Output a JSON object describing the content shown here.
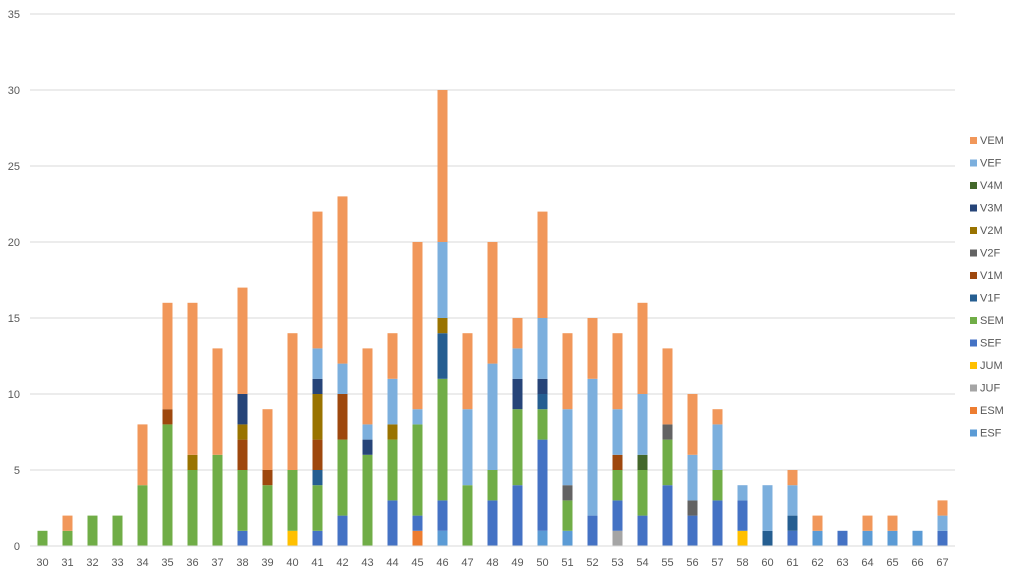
{
  "chart_data": {
    "type": "bar",
    "stacked": true,
    "title": "",
    "xlabel": "",
    "ylabel": "",
    "ylim": [
      0,
      35
    ],
    "yticks": [
      0,
      5,
      10,
      15,
      20,
      25,
      30,
      35
    ],
    "grid": true,
    "legend_position": "right",
    "categories": [
      "30",
      "31",
      "32",
      "33",
      "34",
      "35",
      "36",
      "37",
      "38",
      "39",
      "40",
      "41",
      "42",
      "43",
      "44",
      "45",
      "46",
      "47",
      "48",
      "49",
      "50",
      "51",
      "52",
      "53",
      "54",
      "55",
      "56",
      "57",
      "58",
      "60",
      "61",
      "62",
      "63",
      "64",
      "65",
      "66",
      "67"
    ],
    "series": [
      {
        "name": "ESF",
        "color": "#5b9bd5",
        "values": [
          0,
          0,
          0,
          0,
          0,
          0,
          0,
          0,
          0,
          0,
          0,
          0,
          0,
          0,
          0,
          0,
          1,
          0,
          0,
          0,
          1,
          1,
          0,
          0,
          0,
          0,
          0,
          0,
          0,
          0,
          0,
          1,
          0,
          1,
          1,
          1,
          0
        ]
      },
      {
        "name": "ESM",
        "color": "#ed7d31",
        "values": [
          0,
          0,
          0,
          0,
          0,
          0,
          0,
          0,
          0,
          0,
          0,
          0,
          0,
          0,
          0,
          1,
          0,
          0,
          0,
          0,
          0,
          0,
          0,
          0,
          0,
          0,
          0,
          0,
          0,
          0,
          0,
          0,
          0,
          0,
          0,
          0,
          0
        ]
      },
      {
        "name": "JUF",
        "color": "#a5a5a5",
        "values": [
          0,
          0,
          0,
          0,
          0,
          0,
          0,
          0,
          0,
          0,
          0,
          0,
          0,
          0,
          0,
          0,
          0,
          0,
          0,
          0,
          0,
          0,
          0,
          1,
          0,
          0,
          0,
          0,
          0,
          0,
          0,
          0,
          0,
          0,
          0,
          0,
          0
        ]
      },
      {
        "name": "JUM",
        "color": "#ffc000",
        "values": [
          0,
          0,
          0,
          0,
          0,
          0,
          0,
          0,
          0,
          0,
          1,
          0,
          0,
          0,
          0,
          0,
          0,
          0,
          0,
          0,
          0,
          0,
          0,
          0,
          0,
          0,
          0,
          0,
          1,
          0,
          0,
          0,
          0,
          0,
          0,
          0,
          0
        ]
      },
      {
        "name": "SEF",
        "color": "#4472c4",
        "values": [
          0,
          0,
          0,
          0,
          0,
          0,
          0,
          0,
          1,
          0,
          0,
          1,
          2,
          0,
          3,
          1,
          2,
          0,
          3,
          4,
          6,
          0,
          2,
          2,
          2,
          4,
          2,
          3,
          2,
          0,
          1,
          0,
          1,
          0,
          0,
          0,
          1
        ]
      },
      {
        "name": "SEM",
        "color": "#70ad47",
        "values": [
          1,
          1,
          2,
          2,
          4,
          8,
          5,
          6,
          4,
          4,
          4,
          3,
          5,
          6,
          4,
          6,
          8,
          4,
          2,
          5,
          2,
          2,
          0,
          2,
          3,
          3,
          0,
          2,
          0,
          0,
          0,
          0,
          0,
          0,
          0,
          0,
          0
        ]
      },
      {
        "name": "V1F",
        "color": "#255e91",
        "values": [
          0,
          0,
          0,
          0,
          0,
          0,
          0,
          0,
          0,
          0,
          0,
          1,
          0,
          0,
          0,
          0,
          3,
          0,
          0,
          0,
          1,
          0,
          0,
          0,
          0,
          0,
          0,
          0,
          0,
          1,
          1,
          0,
          0,
          0,
          0,
          0,
          0
        ]
      },
      {
        "name": "V1M",
        "color": "#9e480e",
        "values": [
          0,
          0,
          0,
          0,
          0,
          1,
          0,
          0,
          2,
          1,
          0,
          2,
          3,
          0,
          0,
          0,
          0,
          0,
          0,
          0,
          0,
          0,
          0,
          1,
          0,
          0,
          0,
          0,
          0,
          0,
          0,
          0,
          0,
          0,
          0,
          0,
          0
        ]
      },
      {
        "name": "V2F",
        "color": "#636363",
        "values": [
          0,
          0,
          0,
          0,
          0,
          0,
          0,
          0,
          0,
          0,
          0,
          0,
          0,
          0,
          0,
          0,
          0,
          0,
          0,
          0,
          0,
          1,
          0,
          0,
          0,
          1,
          1,
          0,
          0,
          0,
          0,
          0,
          0,
          0,
          0,
          0,
          0
        ]
      },
      {
        "name": "V2M",
        "color": "#997300",
        "values": [
          0,
          0,
          0,
          0,
          0,
          0,
          1,
          0,
          1,
          0,
          0,
          3,
          0,
          0,
          1,
          0,
          1,
          0,
          0,
          0,
          0,
          0,
          0,
          0,
          0,
          0,
          0,
          0,
          0,
          0,
          0,
          0,
          0,
          0,
          0,
          0,
          0
        ]
      },
      {
        "name": "V3M",
        "color": "#264478",
        "values": [
          0,
          0,
          0,
          0,
          0,
          0,
          0,
          0,
          2,
          0,
          0,
          1,
          0,
          1,
          0,
          0,
          0,
          0,
          0,
          2,
          1,
          0,
          0,
          0,
          0,
          0,
          0,
          0,
          0,
          0,
          0,
          0,
          0,
          0,
          0,
          0,
          0
        ]
      },
      {
        "name": "V4M",
        "color": "#43682b",
        "values": [
          0,
          0,
          0,
          0,
          0,
          0,
          0,
          0,
          0,
          0,
          0,
          0,
          0,
          0,
          0,
          0,
          0,
          0,
          0,
          0,
          0,
          0,
          0,
          0,
          1,
          0,
          0,
          0,
          0,
          0,
          0,
          0,
          0,
          0,
          0,
          0,
          0
        ]
      },
      {
        "name": "VEF",
        "color": "#7cafdd",
        "values": [
          0,
          0,
          0,
          0,
          0,
          0,
          0,
          0,
          0,
          0,
          0,
          2,
          2,
          1,
          3,
          1,
          5,
          5,
          7,
          2,
          4,
          5,
          9,
          3,
          4,
          0,
          3,
          3,
          1,
          3,
          2,
          0,
          0,
          0,
          0,
          0,
          1
        ]
      },
      {
        "name": "VEM",
        "color": "#f1975a",
        "values": [
          0,
          1,
          0,
          0,
          4,
          7,
          10,
          7,
          7,
          4,
          9,
          9,
          11,
          5,
          3,
          11,
          10,
          5,
          8,
          2,
          7,
          5,
          4,
          5,
          6,
          5,
          4,
          1,
          0,
          0,
          1,
          1,
          0,
          1,
          1,
          0,
          1
        ]
      }
    ]
  }
}
